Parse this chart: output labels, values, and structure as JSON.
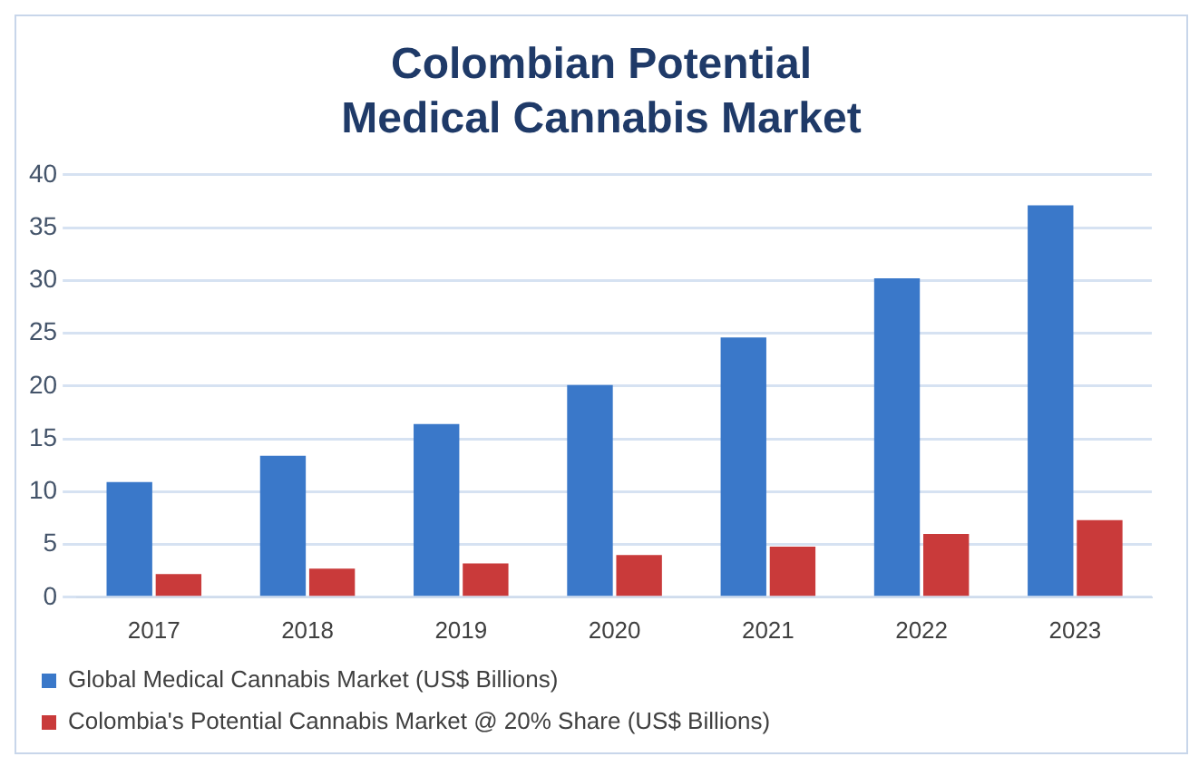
{
  "chart_data": {
    "type": "bar",
    "title": "Colombian Potential Medical Cannabis Market",
    "categories": [
      "2017",
      "2018",
      "2019",
      "2020",
      "2021",
      "2022",
      "2023"
    ],
    "series": [
      {
        "name": "Global Medical Cannabis Market (US$ Billions)",
        "color": "#3a78c9",
        "values": [
          10.9,
          13.4,
          16.4,
          20.1,
          24.6,
          30.2,
          37.1
        ]
      },
      {
        "name": "Colombia's Potential Cannabis Market @ 20% Share (US$ Billions)",
        "color": "#c93a3a",
        "values": [
          2.2,
          2.7,
          3.2,
          4.0,
          4.8,
          6.0,
          7.3
        ]
      }
    ],
    "ylim": [
      0,
      40
    ],
    "yticks": [
      0,
      5,
      10,
      15,
      20,
      25,
      30,
      35,
      40
    ],
    "grid": "y",
    "legend": "bottom"
  }
}
